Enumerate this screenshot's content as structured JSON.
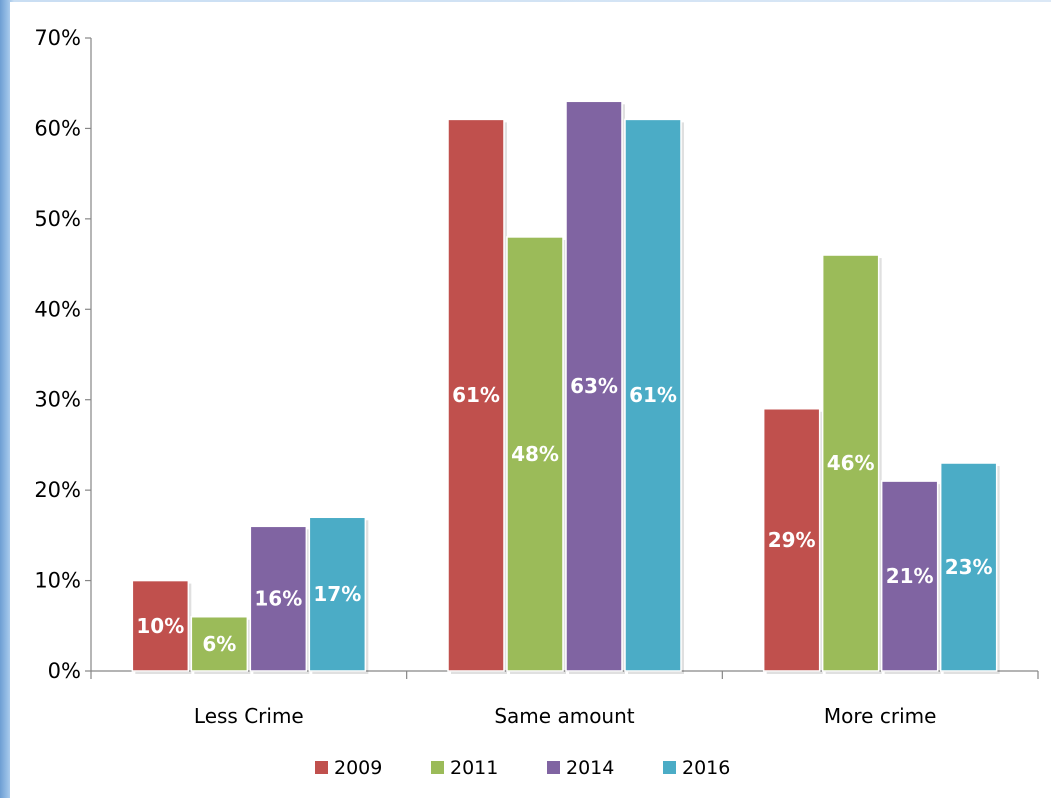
{
  "chart_data": {
    "type": "bar",
    "categories": [
      "Less Crime",
      "Same amount",
      "More crime"
    ],
    "series": [
      {
        "name": "2009",
        "color": "#c0504d",
        "values": [
          10,
          61,
          29
        ]
      },
      {
        "name": "2011",
        "color": "#9bbb59",
        "values": [
          6,
          48,
          46
        ]
      },
      {
        "name": "2014",
        "color": "#8064a2",
        "values": [
          16,
          63,
          21
        ]
      },
      {
        "name": "2016",
        "color": "#4bacc6",
        "values": [
          17,
          61,
          23
        ]
      }
    ],
    "data_labels": [
      [
        "10%",
        "61%",
        "29%"
      ],
      [
        "6%",
        "48%",
        "46%"
      ],
      [
        "16%",
        "63%",
        "21%"
      ],
      [
        "17%",
        "61%",
        "23%"
      ]
    ],
    "y_ticks": [
      "0%",
      "10%",
      "20%",
      "30%",
      "40%",
      "50%",
      "60%",
      "70%"
    ],
    "ylim": [
      0,
      70
    ],
    "y_unit": "%",
    "title": "",
    "xlabel": "",
    "ylabel": "",
    "grid": false,
    "legend_position": "bottom"
  }
}
